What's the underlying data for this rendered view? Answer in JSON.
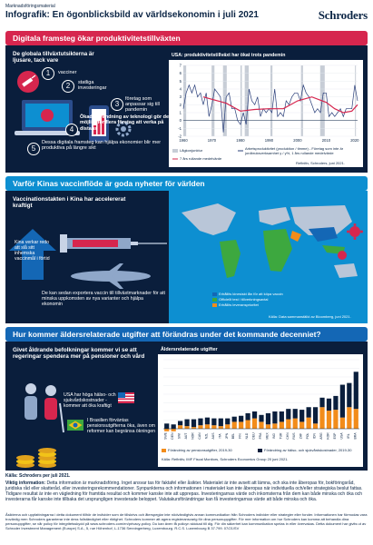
{
  "header": {
    "top_label": "Marknadsföringsmaterial",
    "title": "Infografik: En ögonblicksbild av världsekonomin i juli 2021",
    "brand": "Schroders"
  },
  "section1": {
    "bar_title": "Digitala framsteg ökar produktivitetstillväxten",
    "lead": "De globala tillväxtutsikterna är ljusare, tack vare",
    "item_1": "vacciner",
    "item_2": "statliga investeringar",
    "item_3": "företag som anpassar sig till pandemin",
    "item_4": "Ökad användning av teknologi gör det möjligt för flera företag att verka på distans",
    "item_5": "Dessa digitala framsteg kan hjälpa ekonomier blir mer produktiva på längre sikt",
    "chart_title": "USA: produktivitetstillväxt har ökat trots pandemin",
    "legend_1": "Lågkonjunktur",
    "legend_2": "Arbetsproduktivitet (produktion / timme) - Företag som inte är jordbruksverksamhet y / y%, 1 års rullande medelvärde",
    "legend_3": "7 års rullande medelvärde",
    "source": "Refinitiv, Schroders, juni 2021."
  },
  "section2": {
    "bar_title": "Varför Kinas vaccinflöde är goda nyheter för världen",
    "lead": "Vaccinationstakten i Kina har accelererat kraftigt",
    "side": "Kina verkar redo att slå sitt inhemska vaccinmål i förtid",
    "bottom": "De kan sedan exportera vaccin till tillväxtmarknader för att minska uppkomsten av nya varianter och hjälpa ekonomin",
    "legend_1": "Erhållits kinesiskt lån för att köpa vaccin",
    "legend_2": "Officiellt test / tillverkningsavtal",
    "legend_3": "Erhållits leveransprioritet",
    "source": "Källa: Data sammanställd av Bloomberg, juni 2021."
  },
  "section3": {
    "bar_title": "Hur kommer äldersrelaterade utgifter att förändras under det kommande decenniet?",
    "lead": "Givet åldrande befolkningar kommer vi se att regeringar spendera mer på pensioner och vård",
    "usa": "USA har höga hälso- och sjukvårdskostnader - kommer att öka kraftigt",
    "brazil": "I Brasilien förväntas pensionsutgifterna öka, även om reformer kan begränsa ökningen",
    "chart_title": "Äldersrelaterade utgifter",
    "legend_1": "Förändring av pensionsutgifter, 2019-30",
    "legend_2": "Förändring av hälso- och sjukvårdskostnader, 2019-30",
    "source": "Källa: Refinitiv, IMF Fiscal Monitors, Schroders Economics Group 20 juni 2021."
  },
  "footer": {
    "source": "Källa: Schroders per juli 2021.",
    "important_label": "Viktig information:",
    "important": "Detta information är marknadsföring. Inget ansvar tas för faktafel eller åsikter. Materialet är inte avsett att lämna, och ska inte åberopas för, bokföringsråd, juridiska råd eller skatteråd, eller investeringsrekommendationer. Synpunkterna och informationen i materialet kan inte åberopas när individuella och/eller strategiska beslut fattas. Tidigare resultat är inte en vägledning för framtida resultat och kommer kanske inte att upprepas. Investeringarnas värde och inkomsterna från dem kan både minska och öka och investerarna får kanske inte tillbaka det ursprungligen investerade beloppet. Valutakursförändringar kan få investeringarnas värde att både minska och öka.",
    "fine": "Åsikterna och uppfattningarna i detta dokument tillhör de individer som de tillskrivs och återspeglar inte nödvändigtvis annan kommunikation från Schroders individer eller strategier eller fonder. Informationen har förmodas vara trovärdig men Schroders garanterar inte dess fullständighet eller riktighet. Schroders kommer att agera registeransvarig för dina personuppgifter. För mer information om hur Schroders kan komma att behandla dina personuppgifter, se vår policy för integritetsskydd på www.schroders.com/en/privacy-policy. Du kan även få policyn skickad till dig. För din säkerhet kan kommunikation spelas in eller övervakas. Detta dokument har givits ut av Schroder Investment Management (Europe) S.A., 5, rue Höhenhof, L-1736 Senningerberg, Luxembourg. R.C.S. Luxembourg B 37.799.  07/21/SV"
  },
  "chart_data": [
    {
      "type": "line",
      "title": "USA: produktivitetstillväxt har ökat trots pandemin",
      "x_ticks": [
        "1960",
        "1970",
        "1980",
        "1990",
        "2000",
        "2010",
        "2020"
      ],
      "y_ticks": [
        "-2",
        "-1",
        "0",
        "1",
        "2",
        "3",
        "4",
        "5",
        "6",
        "7"
      ],
      "ylim": [
        -2,
        7
      ],
      "xlim": [
        1960,
        2021
      ],
      "recessions": [
        [
          1960,
          1961
        ],
        [
          1969.9,
          1970.9
        ],
        [
          1973.9,
          1975.2
        ],
        [
          1980,
          1980.5
        ],
        [
          1981.5,
          1982.9
        ],
        [
          1990.5,
          1991.2
        ],
        [
          2001.2,
          2001.9
        ],
        [
          2007.9,
          2009.5
        ],
        [
          2020.1,
          2020.4
        ]
      ],
      "series": [
        {
          "name": "Arbetsproduktivitet (produktion / timme) - Företag som inte är jordbruksverksamhet y / y%, 1 års rullande medelvärde",
          "color": "#2a3f7a",
          "x": [
            1960,
            1961,
            1962,
            1963,
            1964,
            1965,
            1966,
            1967,
            1968,
            1969,
            1970,
            1971,
            1972,
            1973,
            1974,
            1975,
            1976,
            1977,
            1978,
            1979,
            1980,
            1981,
            1982,
            1983,
            1984,
            1985,
            1986,
            1987,
            1988,
            1989,
            1990,
            1991,
            1992,
            1993,
            1994,
            1995,
            1996,
            1997,
            1998,
            1999,
            2000,
            2001,
            2002,
            2003,
            2004,
            2005,
            2006,
            2007,
            2008,
            2009,
            2010,
            2011,
            2012,
            2013,
            2014,
            2015,
            2016,
            2017,
            2018,
            2019,
            2020,
            2021
          ],
          "values": [
            1.5,
            3.5,
            4.5,
            3.5,
            4.5,
            3.0,
            3.5,
            2.0,
            3.5,
            0.5,
            2.0,
            4.0,
            3.5,
            3.0,
            -1.5,
            3.0,
            3.5,
            1.5,
            1.5,
            0.0,
            -0.5,
            1.0,
            -0.5,
            4.0,
            2.5,
            2.0,
            3.0,
            0.5,
            1.5,
            1.0,
            1.5,
            1.0,
            4.0,
            0.5,
            1.0,
            0.5,
            2.5,
            2.0,
            3.0,
            3.5,
            3.5,
            2.5,
            4.5,
            3.5,
            3.0,
            2.0,
            1.0,
            1.5,
            1.0,
            3.5,
            3.5,
            0.5,
            1.0,
            0.5,
            1.0,
            1.5,
            0.5,
            1.5,
            1.5,
            1.5,
            4.5,
            2.5
          ]
        },
        {
          "name": "7 års rullande medelvärde",
          "color": "#d6264e",
          "x": [
            1967,
            1970,
            1975,
            1980,
            1985,
            1990,
            1995,
            2000,
            2005,
            2010,
            2013,
            2016,
            2019,
            2021
          ],
          "values": [
            3.0,
            2.7,
            2.2,
            1.2,
            1.4,
            1.5,
            1.5,
            2.5,
            3.0,
            2.3,
            1.5,
            1.0,
            1.2,
            2.0
          ]
        }
      ]
    },
    {
      "type": "bar",
      "title": "Äldersrelaterade utgifter",
      "categories": [
        "SWE",
        "DEN",
        "SWI",
        "AUT",
        "NOR",
        "CAN",
        "NZL",
        "AUS",
        "ITA",
        "JPN",
        "BEL",
        "FIN",
        "NLD",
        "DEU",
        "FRA",
        "MEX",
        "IND",
        "TUR",
        "CHN",
        "RUS",
        "ZAF",
        "POL",
        "IDN",
        "ARG",
        "KOR",
        "ESP",
        "USA",
        "IRL",
        "BRA"
      ],
      "ylim": [
        0,
        8
      ],
      "series": [
        {
          "name": "Förändring av pensionsutgifter, 2019-30",
          "color": "#f28c1a",
          "values": [
            -0.3,
            -0.3,
            0.4,
            0.3,
            0.2,
            0.4,
            0.5,
            0.4,
            0.3,
            0.5,
            0.8,
            0.8,
            1.0,
            1.2,
            0.8,
            0.5,
            0.6,
            0.8,
            1.1,
            1.2,
            0.8,
            1.3,
            0.6,
            2.5,
            2.1,
            2.2,
            1.3,
            2.5,
            2.3
          ]
        },
        {
          "name": "Förändring av hälso- och sjukvårdskostnader, 2019-30",
          "color": "#0a1e3c",
          "values": [
            0.6,
            0.5,
            0.5,
            0.8,
            0.9,
            0.8,
            0.8,
            0.8,
            0.9,
            0.7,
            0.6,
            0.7,
            0.8,
            0.8,
            0.8,
            1.3,
            1.4,
            1.2,
            1.2,
            1.1,
            1.4,
            1.2,
            1.9,
            1.1,
            1.4,
            1.6,
            3.8,
            2.8,
            4.3
          ]
        }
      ]
    }
  ]
}
